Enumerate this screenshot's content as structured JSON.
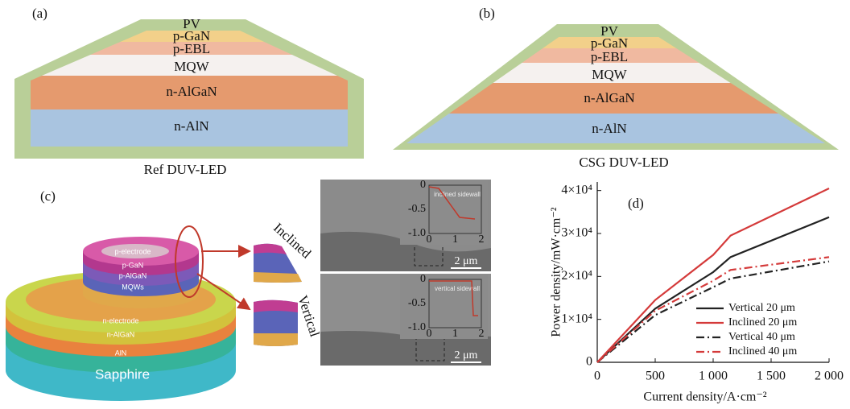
{
  "panels": {
    "a": {
      "label": "(a)",
      "layers": [
        "PV",
        "p-GaN",
        "p-EBL",
        "MQW",
        "n-AlGaN",
        "n-AlN"
      ],
      "caption": "Ref DUV-LED"
    },
    "b": {
      "label": "(b)",
      "layers": [
        "PV",
        "p-GaN",
        "p-EBL",
        "MQW",
        "n-AlGaN",
        "n-AlN"
      ],
      "caption": "CSG DUV-LED"
    },
    "c": {
      "label": "(c)",
      "layers": [
        "p-electrode",
        "p-GaN",
        "p-AlGaN",
        "MQWs",
        "n-electrode",
        "n-AlGaN",
        "AlN",
        "Sapphire"
      ],
      "callouts": [
        "Inclined",
        "Vertical"
      ],
      "insets": [
        {
          "text": "inclined sidewall",
          "xticks": [
            0,
            1,
            2
          ],
          "yticks": [
            0,
            -0.5,
            {
              "value": -1,
              "label": "-1.0"
            }
          ],
          "scale": "2 μm"
        },
        {
          "text": "vertical sidewall",
          "xticks": [
            0,
            1,
            2
          ],
          "yticks": [
            0,
            -0.5,
            {
              "value": -1,
              "label": "-1.0"
            }
          ],
          "scale": "2 μm"
        }
      ]
    }
  },
  "chart_data": {
    "type": "line",
    "label": "(d)",
    "x_label": "Current density/A·cm⁻²",
    "y_label": "Power density/mW·cm⁻²",
    "x": [
      0,
      500,
      1000,
      1150,
      2000
    ],
    "series": [
      {
        "name": "Vertical 20 μm",
        "color": "#222222",
        "linestyle": "solid",
        "values": [
          0,
          12500,
          21000,
          24500,
          33800
        ]
      },
      {
        "name": "Inclined 20 μm",
        "color": "#d43a3a",
        "linestyle": "solid",
        "values": [
          0,
          14500,
          25000,
          29500,
          40500
        ]
      },
      {
        "name": "Vertical 40 μm",
        "color": "#222222",
        "linestyle": "dashdot",
        "values": [
          0,
          11000,
          17500,
          19500,
          23500
        ]
      },
      {
        "name": "Inclined 40 μm",
        "color": "#d43a3a",
        "linestyle": "dashdot",
        "values": [
          0,
          12000,
          19000,
          21500,
          24500
        ]
      }
    ],
    "xlim": [
      0,
      2000
    ],
    "ylim": [
      0,
      42000
    ],
    "xticks": [
      0,
      500,
      {
        "value": 1000,
        "label": "1 000"
      },
      {
        "value": 1500,
        "label": "1 500"
      },
      {
        "value": 2000,
        "label": "2 000"
      }
    ],
    "yticks": [
      0,
      {
        "value": 10000,
        "label": "1×10⁴"
      },
      {
        "value": 20000,
        "label": "2×10⁴"
      },
      {
        "value": 30000,
        "label": "3×10⁴"
      },
      {
        "value": 40000,
        "label": "4×10⁴"
      }
    ],
    "grid": false,
    "legend": "lower right"
  }
}
